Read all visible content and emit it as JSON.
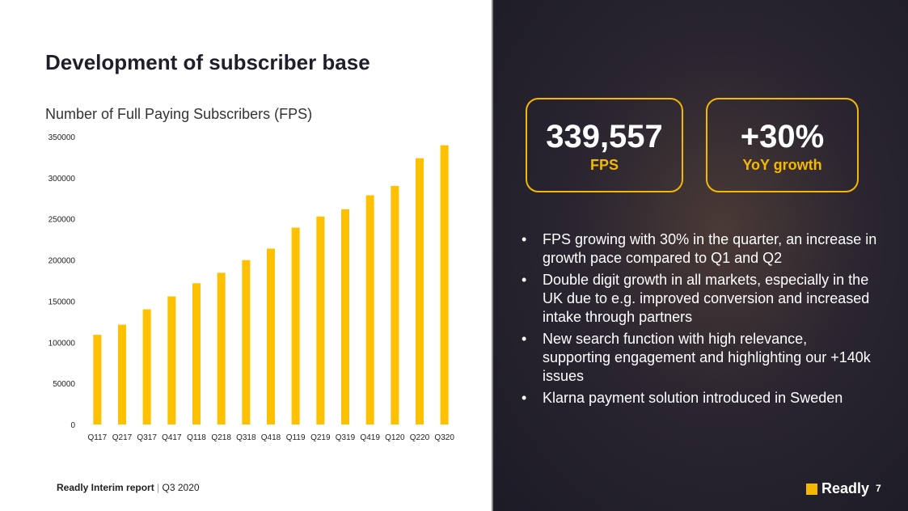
{
  "title": "Development of subscriber base",
  "footer": {
    "report": "Readly Interim report",
    "separator": "|",
    "period": "Q3 2020"
  },
  "kpis": [
    {
      "value": "339,557",
      "label": "FPS"
    },
    {
      "value": "+30%",
      "label": "YoY growth"
    }
  ],
  "bullets": [
    "FPS growing with 30% in the quarter, an increase in growth pace compared to Q1 and Q2",
    "Double digit growth in all markets, especially in the UK due to e.g. improved conversion and increased intake through partners",
    "New search function with high relevance, supporting engagement and highlighting our +140k issues",
    "Klarna payment solution introduced in Sweden"
  ],
  "logo": {
    "text": "Readly"
  },
  "page_number": "7",
  "colors": {
    "bar": "#ffc000",
    "accent": "#f5b800",
    "dark_panel": "#1c1b26"
  },
  "chart_data": {
    "type": "bar",
    "title": "Number of Full Paying Subscribers (FPS)",
    "categories": [
      "Q117",
      "Q217",
      "Q317",
      "Q417",
      "Q118",
      "Q218",
      "Q318",
      "Q418",
      "Q119",
      "Q219",
      "Q319",
      "Q419",
      "Q120",
      "Q220",
      "Q320"
    ],
    "values": [
      109000,
      121400,
      140000,
      155700,
      171700,
      184500,
      199900,
      213900,
      239400,
      252900,
      261700,
      278700,
      290100,
      323800,
      339557
    ],
    "ylim": [
      0,
      350000
    ],
    "yticks": [
      "0",
      "50000",
      "100000",
      "150000",
      "200000",
      "250000",
      "300000",
      "350000"
    ],
    "grid": false,
    "legend": "none"
  }
}
